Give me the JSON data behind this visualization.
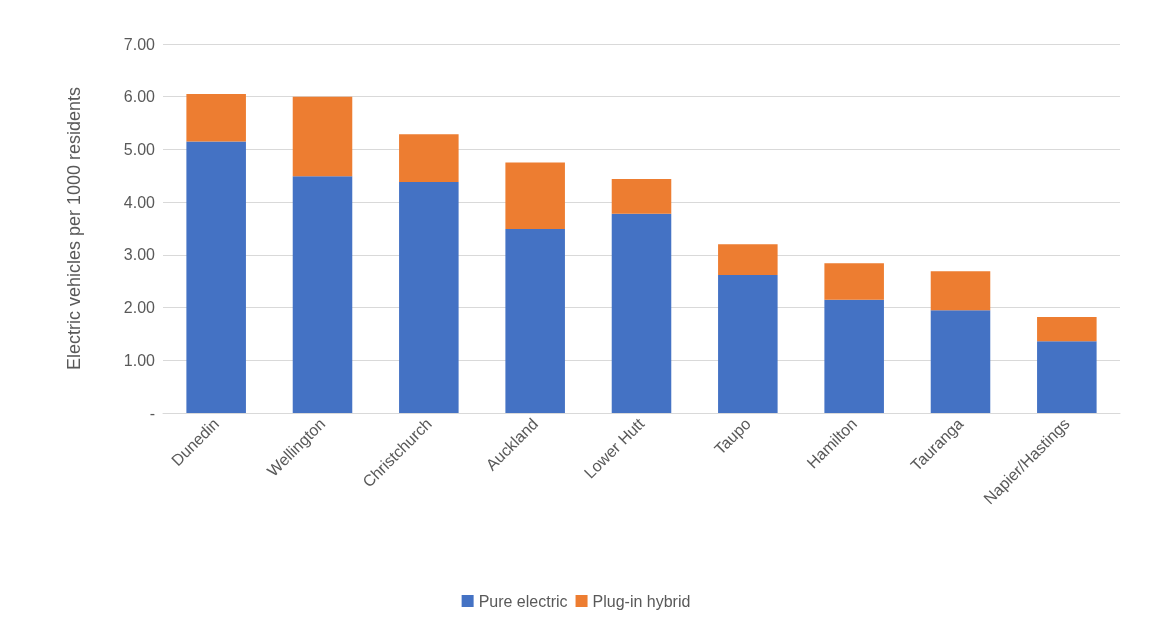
{
  "chart_data": {
    "type": "bar",
    "stacked": true,
    "ylabel": "Electric vehicles per 1000 residents",
    "categories": [
      "Dunedin",
      "Wellington",
      "Christchurch",
      "Auckland",
      "Lower Hutt",
      "Taupo",
      "Hamilton",
      "Tauranga",
      "Napier/Hastings"
    ],
    "series": [
      {
        "name": "Pure electric",
        "color": "#4472c4",
        "values": [
          5.15,
          4.49,
          4.38,
          3.49,
          3.78,
          2.62,
          2.15,
          1.95,
          1.36
        ]
      },
      {
        "name": "Plug-in hybrid",
        "color": "#ed7d31",
        "values": [
          0.9,
          1.51,
          0.91,
          1.26,
          0.66,
          0.58,
          0.69,
          0.74,
          0.46
        ]
      }
    ],
    "ylim": [
      0,
      7
    ],
    "yticks": [
      {
        "value": 0,
        "label": "-"
      },
      {
        "value": 1,
        "label": "1.00"
      },
      {
        "value": 2,
        "label": "2.00"
      },
      {
        "value": 3,
        "label": "3.00"
      },
      {
        "value": 4,
        "label": "4.00"
      },
      {
        "value": 5,
        "label": "5.00"
      },
      {
        "value": 6,
        "label": "6.00"
      },
      {
        "value": 7,
        "label": "7.00"
      }
    ],
    "grid": "y",
    "legend": "bottom"
  }
}
